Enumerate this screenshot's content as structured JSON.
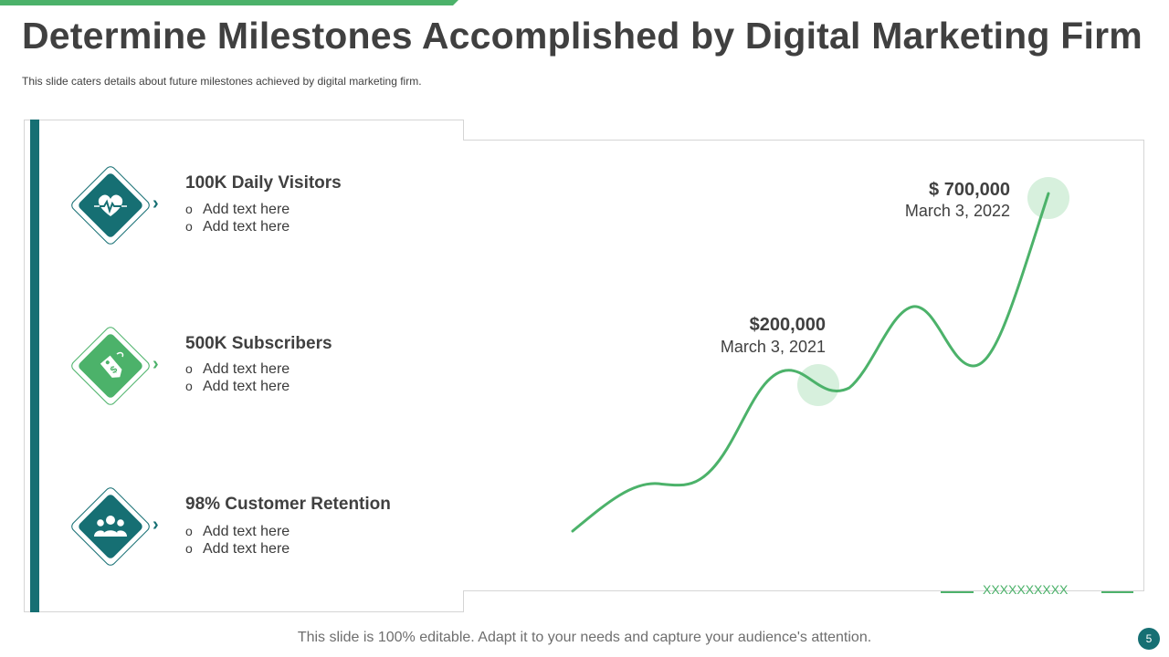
{
  "slide": {
    "title": "Determine Milestones Accomplished by Digital Marketing Firm",
    "subtitle": "This slide caters details about future milestones achieved  by digital marketing firm.",
    "footer": "This slide is 100% editable. Adapt it to your needs and capture your audience's attention.",
    "page_number": "5"
  },
  "milestones": [
    {
      "heading": "100K Daily Visitors",
      "icon": "heart-pulse-icon",
      "bullets": [
        "Add text here",
        "Add text here"
      ],
      "color": "#166f73"
    },
    {
      "heading": "500K Subscribers",
      "icon": "dollar-tag-icon",
      "bullets": [
        "Add text here",
        "Add text here"
      ],
      "color": "#4cb26a"
    },
    {
      "heading": "98% Customer Retention",
      "icon": "people-group-icon",
      "bullets": [
        "Add text here",
        "Add text here"
      ],
      "color": "#166f73"
    }
  ],
  "chart": {
    "point_1": {
      "value": "$200,000",
      "date": "March 3, 2021"
    },
    "point_2": {
      "value": "$ 700,000",
      "date": "March 3, 2022"
    },
    "decoration": "XXXXXXXXXX",
    "line_color": "#4cb26a",
    "highlight_color": "#d7f0dd"
  },
  "colors": {
    "teal": "#166f73",
    "green": "#4cb26a",
    "text": "#404040"
  }
}
